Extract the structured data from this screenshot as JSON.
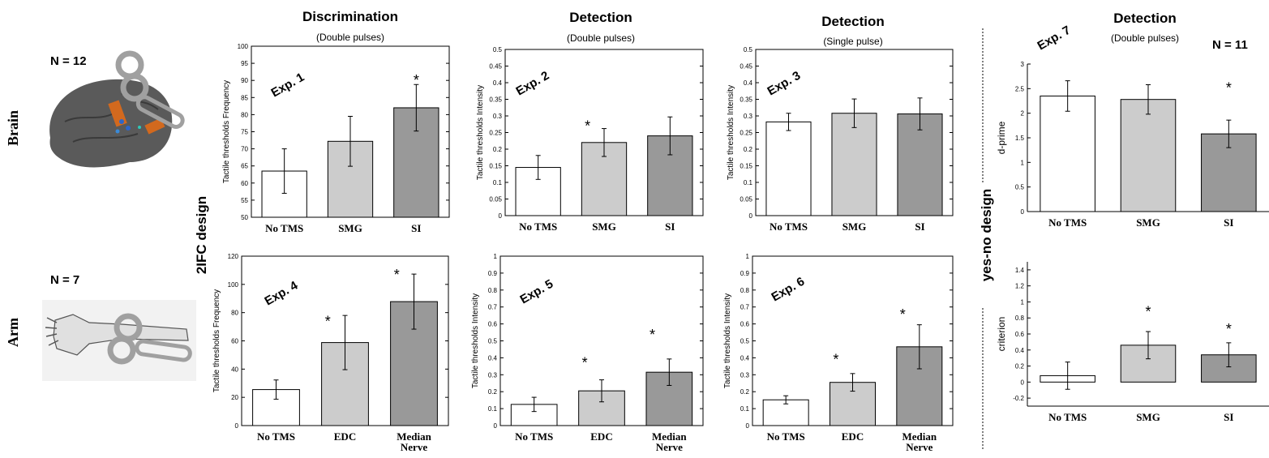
{
  "colors": {
    "no_tms": "#ffffff",
    "mid": "#cccccc",
    "dark": "#999999",
    "edge": "#000000",
    "coil": "#a0a0a0",
    "brain": "#5a5a5a"
  },
  "rows": [
    {
      "label": "Brain",
      "n": "N = 12"
    },
    {
      "label": "Arm",
      "n": "N = 7"
    }
  ],
  "design_labels": {
    "left": "2IFC design",
    "right": "yes-no design"
  },
  "right_n": "N = 11",
  "col_titles": [
    {
      "title": "Discrimination",
      "subtitle": "(Double pulses)"
    },
    {
      "title": "Detection",
      "subtitle": "(Double pulses)"
    },
    {
      "title": "Detection",
      "subtitle": "(Single pulse)"
    },
    {
      "title": "Detection",
      "subtitle": "(Double pulses)"
    }
  ],
  "chart_data": [
    {
      "type": "bar",
      "exp": "Exp. 1",
      "ylabel": "Tactile thresholds Frequency",
      "ylim": [
        50,
        100
      ],
      "yticks": [
        "50",
        "55",
        "60",
        "65",
        "70",
        "75",
        "80",
        "85",
        "90",
        "95",
        "100"
      ],
      "categories": [
        [
          "No TMS"
        ],
        [
          "SMG"
        ],
        [
          "SI"
        ]
      ],
      "values": [
        63.5,
        72.2,
        82.0
      ],
      "errors": [
        6.5,
        7.3,
        6.8
      ],
      "stars": [
        {
          "index": 2,
          "value": 90.5
        }
      ]
    },
    {
      "type": "bar",
      "exp": "Exp. 2",
      "ylabel": "Tactile thresholds Intensity",
      "ylim": [
        0,
        0.5
      ],
      "yticks": [
        "0",
        "0.05",
        "0.1",
        "0.15",
        "0.2",
        "0.25",
        "0.3",
        "0.35",
        "0.4",
        "0.45",
        "0.5"
      ],
      "categories": [
        [
          "No TMS"
        ],
        [
          "SMG"
        ],
        [
          "SI"
        ]
      ],
      "values": [
        0.145,
        0.22,
        0.24
      ],
      "errors": [
        0.036,
        0.042,
        0.057
      ],
      "stars": [
        {
          "index": 0.75,
          "value": 0.275
        }
      ]
    },
    {
      "type": "bar",
      "exp": "Exp. 3",
      "ylabel": "Tactile thresholds Intensity",
      "ylim": [
        0,
        0.5
      ],
      "yticks": [
        "0",
        "0.05",
        "0.1",
        "0.15",
        "0.2",
        "0.25",
        "0.3",
        "0.35",
        "0.4",
        "0.45",
        "0.5"
      ],
      "categories": [
        [
          "No TMS"
        ],
        [
          "SMG"
        ],
        [
          "SI"
        ]
      ],
      "values": [
        0.282,
        0.308,
        0.306
      ],
      "errors": [
        0.026,
        0.043,
        0.048
      ],
      "stars": []
    },
    {
      "type": "bar",
      "exp": "Exp. 7",
      "ylabel": "d-prime",
      "ylim": [
        0,
        3
      ],
      "yticks": [
        "0",
        "0.5",
        "1",
        "1.5",
        "2",
        "2.5",
        "3"
      ],
      "categories": [
        [
          "No TMS"
        ],
        [
          "SMG"
        ],
        [
          "SI"
        ]
      ],
      "values": [
        2.35,
        2.28,
        1.58
      ],
      "errors": [
        0.31,
        0.3,
        0.28
      ],
      "stars": [
        {
          "index": 2.0,
          "value": 2.55
        }
      ]
    },
    {
      "type": "bar",
      "exp": "Exp. 4",
      "ylabel": "Tactile thresholds Frequency",
      "ylim": [
        0,
        120
      ],
      "yticks": [
        "0",
        "20",
        "40",
        "60",
        "80",
        "100",
        "120"
      ],
      "categories": [
        [
          "No TMS"
        ],
        [
          "EDC"
        ],
        [
          "Median",
          "Nerve"
        ]
      ],
      "values": [
        25.5,
        58.8,
        87.8
      ],
      "errors": [
        6.8,
        19.2,
        19.5
      ],
      "stars": [
        {
          "index": 0.75,
          "value": 75
        },
        {
          "index": 1.75,
          "value": 108
        }
      ]
    },
    {
      "type": "bar",
      "exp": "Exp. 5",
      "ylabel": "Tactile thresholds Intensity",
      "ylim": [
        0,
        1
      ],
      "yticks": [
        "0",
        "0.1",
        "0.2",
        "0.3",
        "0.4",
        "0.5",
        "0.6",
        "0.7",
        "0.8",
        "0.9",
        "1"
      ],
      "categories": [
        [
          "No TMS"
        ],
        [
          "EDC"
        ],
        [
          "Median",
          "Nerve"
        ]
      ],
      "values": [
        0.125,
        0.205,
        0.315
      ],
      "errors": [
        0.042,
        0.065,
        0.078
      ],
      "stars": [
        {
          "index": 0.75,
          "value": 0.38
        },
        {
          "index": 1.75,
          "value": 0.545
        }
      ]
    },
    {
      "type": "bar",
      "exp": "Exp. 6",
      "ylabel": "Tactile thresholds Intensity",
      "ylim": [
        0,
        1
      ],
      "yticks": [
        "0",
        "0.1",
        "0.2",
        "0.3",
        "0.4",
        "0.5",
        "0.6",
        "0.7",
        "0.8",
        "0.9",
        "1"
      ],
      "categories": [
        [
          "No TMS"
        ],
        [
          "EDC"
        ],
        [
          "Median",
          "Nerve"
        ]
      ],
      "values": [
        0.152,
        0.255,
        0.465
      ],
      "errors": [
        0.024,
        0.052,
        0.13
      ],
      "stars": [
        {
          "index": 0.75,
          "value": 0.4
        },
        {
          "index": 1.75,
          "value": 0.665
        }
      ]
    },
    {
      "type": "bar",
      "exp": "",
      "ylabel": "criterion",
      "ylim": [
        -0.3,
        1.5
      ],
      "yticks": [
        "-0.2",
        "0",
        "0.2",
        "0.4",
        "0.6",
        "0.8",
        "1",
        "1.2",
        "1.4"
      ],
      "ytick_values": [
        -0.2,
        0,
        0.2,
        0.4,
        0.6,
        0.8,
        1,
        1.2,
        1.4
      ],
      "categories": [
        [
          "No TMS"
        ],
        [
          "SMG"
        ],
        [
          "SI"
        ]
      ],
      "values": [
        0.08,
        0.46,
        0.34
      ],
      "errors": [
        0.17,
        0.17,
        0.15
      ],
      "stars": [
        {
          "index": 1,
          "value": 0.9
        },
        {
          "index": 2,
          "value": 0.68
        }
      ]
    }
  ]
}
